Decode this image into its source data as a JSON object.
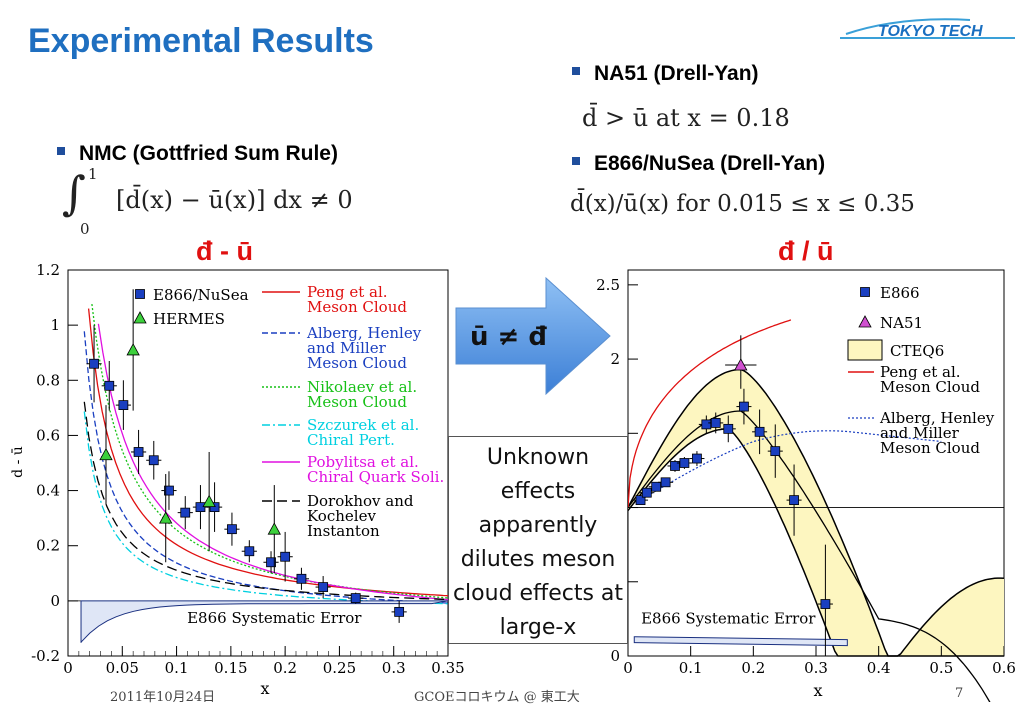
{
  "slide": {
    "title": "Experimental Results",
    "logo_text": "TOKYO TECH",
    "bullets": {
      "nmc": "NMC (Gottfried Sum Rule)",
      "na51": "NA51 (Drell-Yan)",
      "e866": "E866/NuSea (Drell-Yan)"
    },
    "formulas": {
      "nmc_upper": "1",
      "nmc_lower": "0",
      "nmc_body": "[d̄(x) − ū(x)] dx ≠ 0",
      "na51": "d̄ > ū  at  x = 0.18",
      "e866": "d̄(x)/ū(x)  for  0.015 ≤ x ≤ 0.35"
    },
    "left_plot_title": "đ - ū",
    "right_plot_title": "đ / ū",
    "arrow_label": "ū ≠ đ",
    "callout": "Unknown effects apparently dilutes meson cloud effects at large-x",
    "footer": {
      "date": "2011年10月24日",
      "center": "GCOEコロキウム @ 東工大",
      "page": "7"
    }
  },
  "colors": {
    "title": "#1f6fc0",
    "accent_red": "#e01010",
    "arrow": "#4a8fe0",
    "bullet": "#1f4e9c",
    "band": "#fdf6c0"
  },
  "chart_data": [
    {
      "type": "scatter",
      "xlabel": "x",
      "ylabel": "d - ū",
      "xlim": [
        0,
        0.35
      ],
      "ylim": [
        -0.2,
        1.2
      ],
      "xticks": [
        "0",
        "0.05",
        "0.1",
        "0.15",
        "0.2",
        "0.25",
        "0.3",
        "0.35"
      ],
      "yticks": [
        "-0.2",
        "0",
        "0.2",
        "0.4",
        "0.6",
        "0.8",
        "1",
        "1.2"
      ],
      "annotation": "E866 Systematic Error",
      "series": [
        {
          "name": "E866/NuSea",
          "marker": "square",
          "color": "#1a3fc0",
          "x": [
            0.024,
            0.038,
            0.051,
            0.065,
            0.079,
            0.093,
            0.108,
            0.122,
            0.135,
            0.151,
            0.167,
            0.187,
            0.2,
            0.215,
            0.235,
            0.265,
            0.305
          ],
          "y": [
            0.86,
            0.78,
            0.71,
            0.54,
            0.51,
            0.4,
            0.32,
            0.34,
            0.34,
            0.26,
            0.18,
            0.14,
            0.16,
            0.08,
            0.05,
            0.01,
            -0.04
          ]
        },
        {
          "name": "HERMES",
          "marker": "triangle",
          "color": "#16a316",
          "x": [
            0.035,
            0.06,
            0.09,
            0.13,
            0.19
          ],
          "y": [
            0.53,
            0.91,
            0.3,
            0.36,
            0.26
          ]
        },
        {
          "name": "Peng et al. Meson Cloud",
          "color": "#e01010",
          "style": "solid"
        },
        {
          "name": "Alberg, Henley and Miller Meson Cloud",
          "color": "#1a3fc0",
          "style": "dashed"
        },
        {
          "name": "Nikolaev et al. Meson Cloud",
          "color": "#16c016",
          "style": "dotted"
        },
        {
          "name": "Szczurek et al. Chiral Pert.",
          "color": "#00d0e0",
          "style": "dashdot"
        },
        {
          "name": "Pobylitsa et al. Chiral Quark Soli.",
          "color": "#e010e0",
          "style": "solid"
        },
        {
          "name": "Dorokhov and Kochelev Instanton",
          "color": "#000000",
          "style": "longdash"
        }
      ]
    },
    {
      "type": "scatter",
      "xlabel": "x",
      "ylabel": "",
      "xlim": [
        0,
        0.6
      ],
      "ylim": [
        0,
        2.6
      ],
      "xticks": [
        "0",
        "0.1",
        "0.2",
        "0.3",
        "0.4",
        "0.5",
        "0.6"
      ],
      "yticks": [
        "0",
        "0.5",
        "1",
        "1.5",
        "2",
        "2.5"
      ],
      "annotation": "E866 Systematic Error",
      "series": [
        {
          "name": "E866",
          "marker": "square",
          "color": "#1a3fc0",
          "x": [
            0.02,
            0.03,
            0.045,
            0.06,
            0.075,
            0.09,
            0.11,
            0.125,
            0.14,
            0.16,
            0.185,
            0.21,
            0.235,
            0.265,
            0.315
          ],
          "y": [
            1.05,
            1.1,
            1.14,
            1.17,
            1.28,
            1.3,
            1.33,
            1.56,
            1.57,
            1.53,
            1.68,
            1.51,
            1.38,
            1.05,
            0.35
          ]
        },
        {
          "name": "NA51",
          "marker": "triangle",
          "color": "#c040c0",
          "x": [
            0.18
          ],
          "y": [
            1.96
          ]
        },
        {
          "name": "CTEQ6",
          "style": "band",
          "color": "#fdf6c0"
        },
        {
          "name": "Peng et al. Meson Cloud",
          "color": "#e01010",
          "style": "solid"
        },
        {
          "name": "Alberg, Henley and Miller Meson Cloud",
          "color": "#1a3fc0",
          "style": "dotted"
        }
      ]
    }
  ]
}
